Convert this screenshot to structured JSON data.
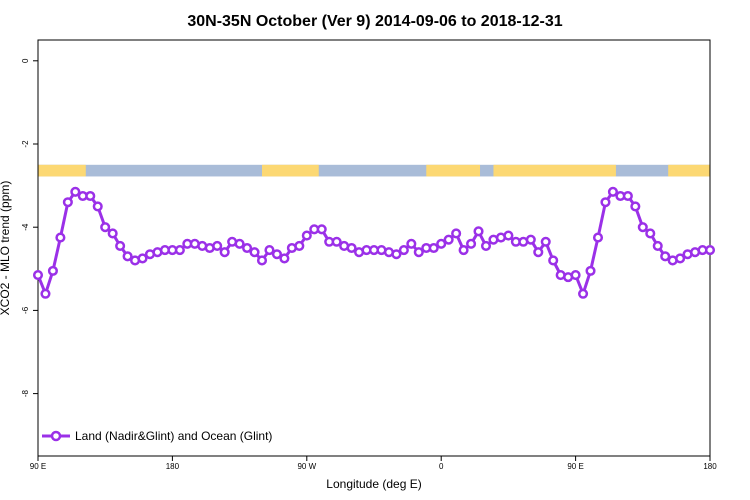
{
  "chart_data": {
    "type": "line",
    "title": "30N-35N October (Ver 9)   2014-09-06 to 2018-12-31",
    "xlabel": "Longitude (deg E)",
    "ylabel": "XCO2 - MLO trend (ppm)",
    "xlim": [
      90,
      540
    ],
    "ylim": [
      -9.5,
      0.5
    ],
    "x_ticks": [
      {
        "value": 90,
        "label": "90 E"
      },
      {
        "value": 180,
        "label": "180"
      },
      {
        "value": 270,
        "label": "90 W"
      },
      {
        "value": 360,
        "label": "0"
      },
      {
        "value": 450,
        "label": "90 E"
      },
      {
        "value": 540,
        "label": "180"
      }
    ],
    "y_ticks": [
      {
        "value": 0,
        "label": "0"
      },
      {
        "value": -2,
        "label": "-2"
      },
      {
        "value": -4,
        "label": "-4"
      },
      {
        "value": -6,
        "label": "-6"
      },
      {
        "value": -8,
        "label": "-8"
      }
    ],
    "grid": false,
    "legend": {
      "position": "bottom-left",
      "entries": [
        "Land (Nadir&Glint) and Ocean (Glint)"
      ]
    },
    "land_ocean_band": {
      "y_top": -2.5,
      "y_bottom": -2.78,
      "land_color": "#fcd873",
      "ocean_color": "#a9bcd8",
      "land_intervals": [
        [
          90,
          122
        ],
        [
          240,
          278
        ],
        [
          350,
          386
        ],
        [
          395,
          477
        ],
        [
          512,
          540
        ]
      ]
    },
    "series": [
      {
        "color": "#9b30e8",
        "x": [
          90,
          95,
          100,
          105,
          110,
          115,
          120,
          125,
          130,
          135,
          140,
          145,
          150,
          155,
          160,
          165,
          170,
          175,
          180,
          185,
          190,
          195,
          200,
          205,
          210,
          215,
          220,
          225,
          230,
          235,
          240,
          245,
          250,
          255,
          260,
          265,
          270,
          275,
          280,
          285,
          290,
          295,
          300,
          305,
          310,
          315,
          320,
          325,
          330,
          335,
          340,
          345,
          350,
          355,
          360,
          365,
          370,
          375,
          380,
          385,
          390,
          395,
          400,
          405,
          410,
          415,
          420,
          425,
          430,
          435,
          440,
          445,
          450,
          455,
          460,
          465,
          470,
          475,
          480,
          485,
          490,
          495,
          500,
          505,
          510,
          515,
          520,
          525,
          530,
          535,
          540
        ],
        "y": [
          -5.15,
          -5.6,
          -5.05,
          -4.25,
          -3.4,
          -3.15,
          -3.25,
          -3.25,
          -3.5,
          -4.0,
          -4.15,
          -4.45,
          -4.7,
          -4.8,
          -4.75,
          -4.65,
          -4.6,
          -4.55,
          -4.55,
          -4.55,
          -4.4,
          -4.4,
          -4.45,
          -4.5,
          -4.45,
          -4.6,
          -4.35,
          -4.4,
          -4.5,
          -4.6,
          -4.8,
          -4.55,
          -4.65,
          -4.75,
          -4.5,
          -4.45,
          -4.2,
          -4.05,
          -4.05,
          -4.35,
          -4.35,
          -4.45,
          -4.5,
          -4.6,
          -4.55,
          -4.55,
          -4.55,
          -4.6,
          -4.65,
          -4.55,
          -4.4,
          -4.6,
          -4.5,
          -4.5,
          -4.4,
          -4.3,
          -4.15,
          -4.55,
          -4.4,
          -4.1,
          -4.45,
          -4.3,
          -4.25,
          -4.2,
          -4.35,
          -4.35,
          -4.3,
          -4.6,
          -4.35,
          -4.8,
          -5.15,
          -5.2,
          -5.15,
          -5.6,
          -5.05,
          -4.25,
          -3.4,
          -3.15,
          -3.25,
          -3.25,
          -3.5,
          -4.0,
          -4.15,
          -4.45,
          -4.7,
          -4.8,
          -4.75,
          -4.65,
          -4.6,
          -4.55,
          -4.55
        ]
      }
    ]
  }
}
